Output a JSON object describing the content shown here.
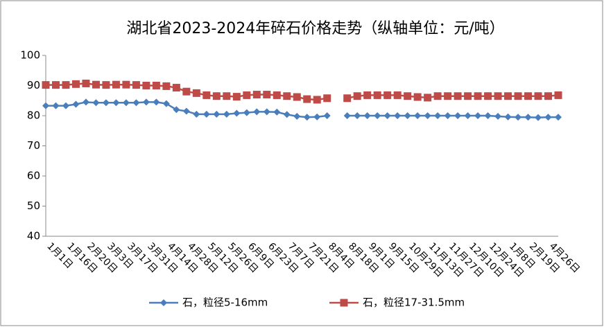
{
  "chart_data": {
    "type": "line",
    "title": "湖北省2023-2024年碎石价格走势（纵轴单位：元/吨）",
    "categories": [
      "1月1日",
      null,
      "1月16日",
      null,
      "2月20日",
      null,
      "3月3日",
      null,
      "3月17日",
      null,
      "3月31日",
      null,
      "4月14日",
      null,
      "4月28日",
      null,
      "5月12日",
      null,
      "5月26日",
      null,
      "6月9日",
      null,
      "6月23日",
      null,
      "7月7日",
      null,
      "7月21日",
      null,
      "8月4日",
      null,
      "8月18日",
      null,
      "9月1日",
      null,
      "9月15日",
      null,
      "10月29日",
      null,
      "11月13日",
      null,
      "11月27日",
      null,
      "12月10日",
      null,
      "12月24日",
      null,
      "1月8日",
      null,
      "2月19日",
      null,
      "4月26日",
      null
    ],
    "series": [
      {
        "name": "石，粒径5-16mm",
        "color": "#4a7ebb",
        "marker": "diamond",
        "values": [
          83.3,
          83.3,
          83.3,
          83.8,
          84.5,
          84.3,
          84.3,
          84.3,
          84.3,
          84.3,
          84.5,
          84.5,
          84,
          82,
          81.5,
          80.5,
          80.5,
          80.5,
          80.5,
          80.8,
          81,
          81.3,
          81.3,
          81.2,
          80.4,
          79.8,
          79.5,
          79.6,
          80,
          null,
          80,
          80,
          80,
          80,
          80,
          80,
          80,
          80,
          80,
          80,
          80,
          80,
          80,
          80,
          80,
          79.8,
          79.6,
          79.5,
          79.5,
          79.4,
          79.5,
          79.5
        ]
      },
      {
        "name": "石，粒径17-31.5mm",
        "color": "#be4b48",
        "marker": "square",
        "values": [
          90.2,
          90.2,
          90.2,
          90.5,
          90.7,
          90.3,
          90.2,
          90.3,
          90.3,
          90.2,
          90,
          90,
          89.8,
          89.3,
          88,
          87.5,
          86.8,
          86.5,
          86.5,
          86.3,
          86.8,
          87,
          87,
          86.8,
          86.5,
          86.2,
          85.5,
          85.3,
          85.8,
          null,
          85.8,
          86.5,
          86.8,
          86.8,
          86.8,
          86.8,
          86.5,
          86.2,
          86,
          86.5,
          86.5,
          86.5,
          86.5,
          86.5,
          86.5,
          86.5,
          86.5,
          86.5,
          86.5,
          86.5,
          86.5,
          86.8
        ]
      }
    ],
    "ylim": [
      40,
      100
    ],
    "yticks": [
      40,
      50,
      60,
      70,
      80,
      90,
      100
    ],
    "grid": false,
    "legend": "bottom"
  }
}
